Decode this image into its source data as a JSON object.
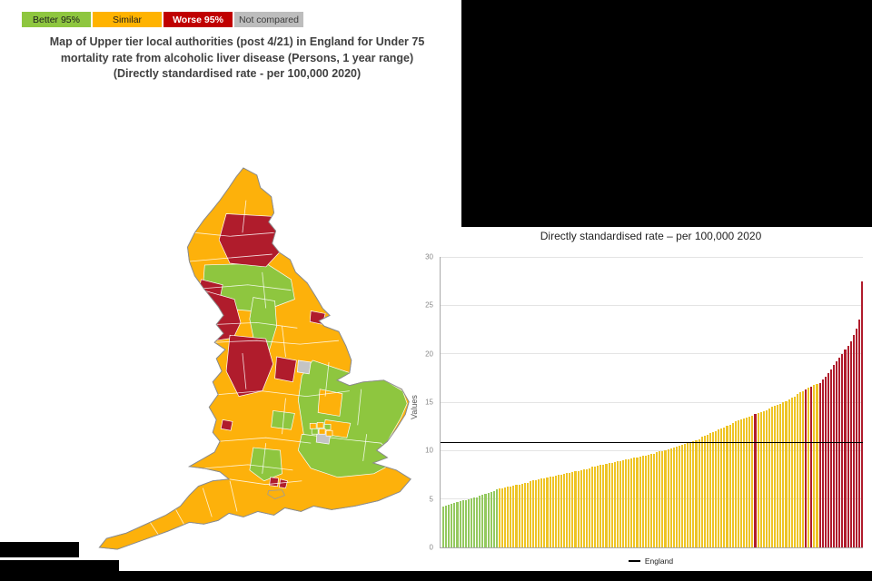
{
  "legend": {
    "items": [
      {
        "label": "Better 95%",
        "color": "#8ec63f",
        "text_color": "#1d1d1d",
        "bold": false
      },
      {
        "label": "Similar",
        "color": "#ffb300",
        "text_color": "#1d1d1d",
        "bold": false
      },
      {
        "label": "Worse 95%",
        "color": "#c00000",
        "text_color": "#ffffff",
        "bold": true
      },
      {
        "label": "Not compared",
        "color": "#bdbdbd",
        "text_color": "#3d3d3d",
        "bold": false
      }
    ]
  },
  "map": {
    "title_lines": [
      "Map of Upper tier local authorities (post 4/21) in England for Under 75",
      "mortality rate from alcoholic liver disease (Persons, 1 year range)",
      "(Directly standardised rate - per 100,000 2020)"
    ],
    "colors": {
      "better": "#8ec63f",
      "similar": "#fdb10b",
      "worse": "#b01c2c",
      "not_compared": "#c4c4c4"
    }
  },
  "chart_data": {
    "type": "bar",
    "title": "Directly standardised rate – per 100,000 2020",
    "ylabel": "Values",
    "ylim": [
      0,
      30
    ],
    "yticks": [
      0,
      5,
      10,
      15,
      20,
      25,
      30
    ],
    "grid": true,
    "legend_label": "England",
    "reference_line": {
      "name": "England",
      "value": 10.8
    },
    "bar_colors": {
      "g": "#94c95f",
      "y": "#eec425",
      "r": "#b01c2c"
    },
    "sig_runs": [
      [
        "g",
        20
      ],
      [
        "y",
        91
      ],
      [
        "r",
        1
      ],
      [
        "y",
        17
      ],
      [
        "r",
        1
      ],
      [
        "y",
        1
      ],
      [
        "r",
        1
      ],
      [
        "y",
        2
      ],
      [
        "r",
        16
      ]
    ],
    "values": [
      4.2,
      4.3,
      4.4,
      4.5,
      4.6,
      4.7,
      4.8,
      4.9,
      4.9,
      5.0,
      5.1,
      5.2,
      5.2,
      5.3,
      5.4,
      5.5,
      5.6,
      5.7,
      5.8,
      6.0,
      6.1,
      6.1,
      6.2,
      6.3,
      6.3,
      6.4,
      6.5,
      6.5,
      6.6,
      6.7,
      6.7,
      6.8,
      6.9,
      6.9,
      7.0,
      7.1,
      7.1,
      7.2,
      7.3,
      7.3,
      7.4,
      7.5,
      7.5,
      7.6,
      7.7,
      7.7,
      7.8,
      7.9,
      7.9,
      8.0,
      8.1,
      8.1,
      8.2,
      8.3,
      8.3,
      8.4,
      8.5,
      8.5,
      8.6,
      8.7,
      8.7,
      8.8,
      8.9,
      8.9,
      9.0,
      9.1,
      9.1,
      9.2,
      9.3,
      9.3,
      9.4,
      9.5,
      9.5,
      9.6,
      9.7,
      9.7,
      9.8,
      9.9,
      9.9,
      10.0,
      10.1,
      10.2,
      10.3,
      10.4,
      10.5,
      10.6,
      10.7,
      10.8,
      10.9,
      11.0,
      11.1,
      11.2,
      11.4,
      11.5,
      11.6,
      11.8,
      11.9,
      12.0,
      12.2,
      12.3,
      12.4,
      12.6,
      12.7,
      12.8,
      13.0,
      13.1,
      13.2,
      13.3,
      13.4,
      13.5,
      13.6,
      13.8,
      13.9,
      14.0,
      14.1,
      14.2,
      14.3,
      14.5,
      14.6,
      14.7,
      14.8,
      15.0,
      15.1,
      15.3,
      15.5,
      15.6,
      15.8,
      16.0,
      16.1,
      16.3,
      16.5,
      16.6,
      16.8,
      16.9,
      17.0,
      17.3,
      17.6,
      18.0,
      18.4,
      18.8,
      19.2,
      19.6,
      20.0,
      20.4,
      20.8,
      21.3,
      21.9,
      22.6,
      23.5,
      27.5
    ]
  }
}
